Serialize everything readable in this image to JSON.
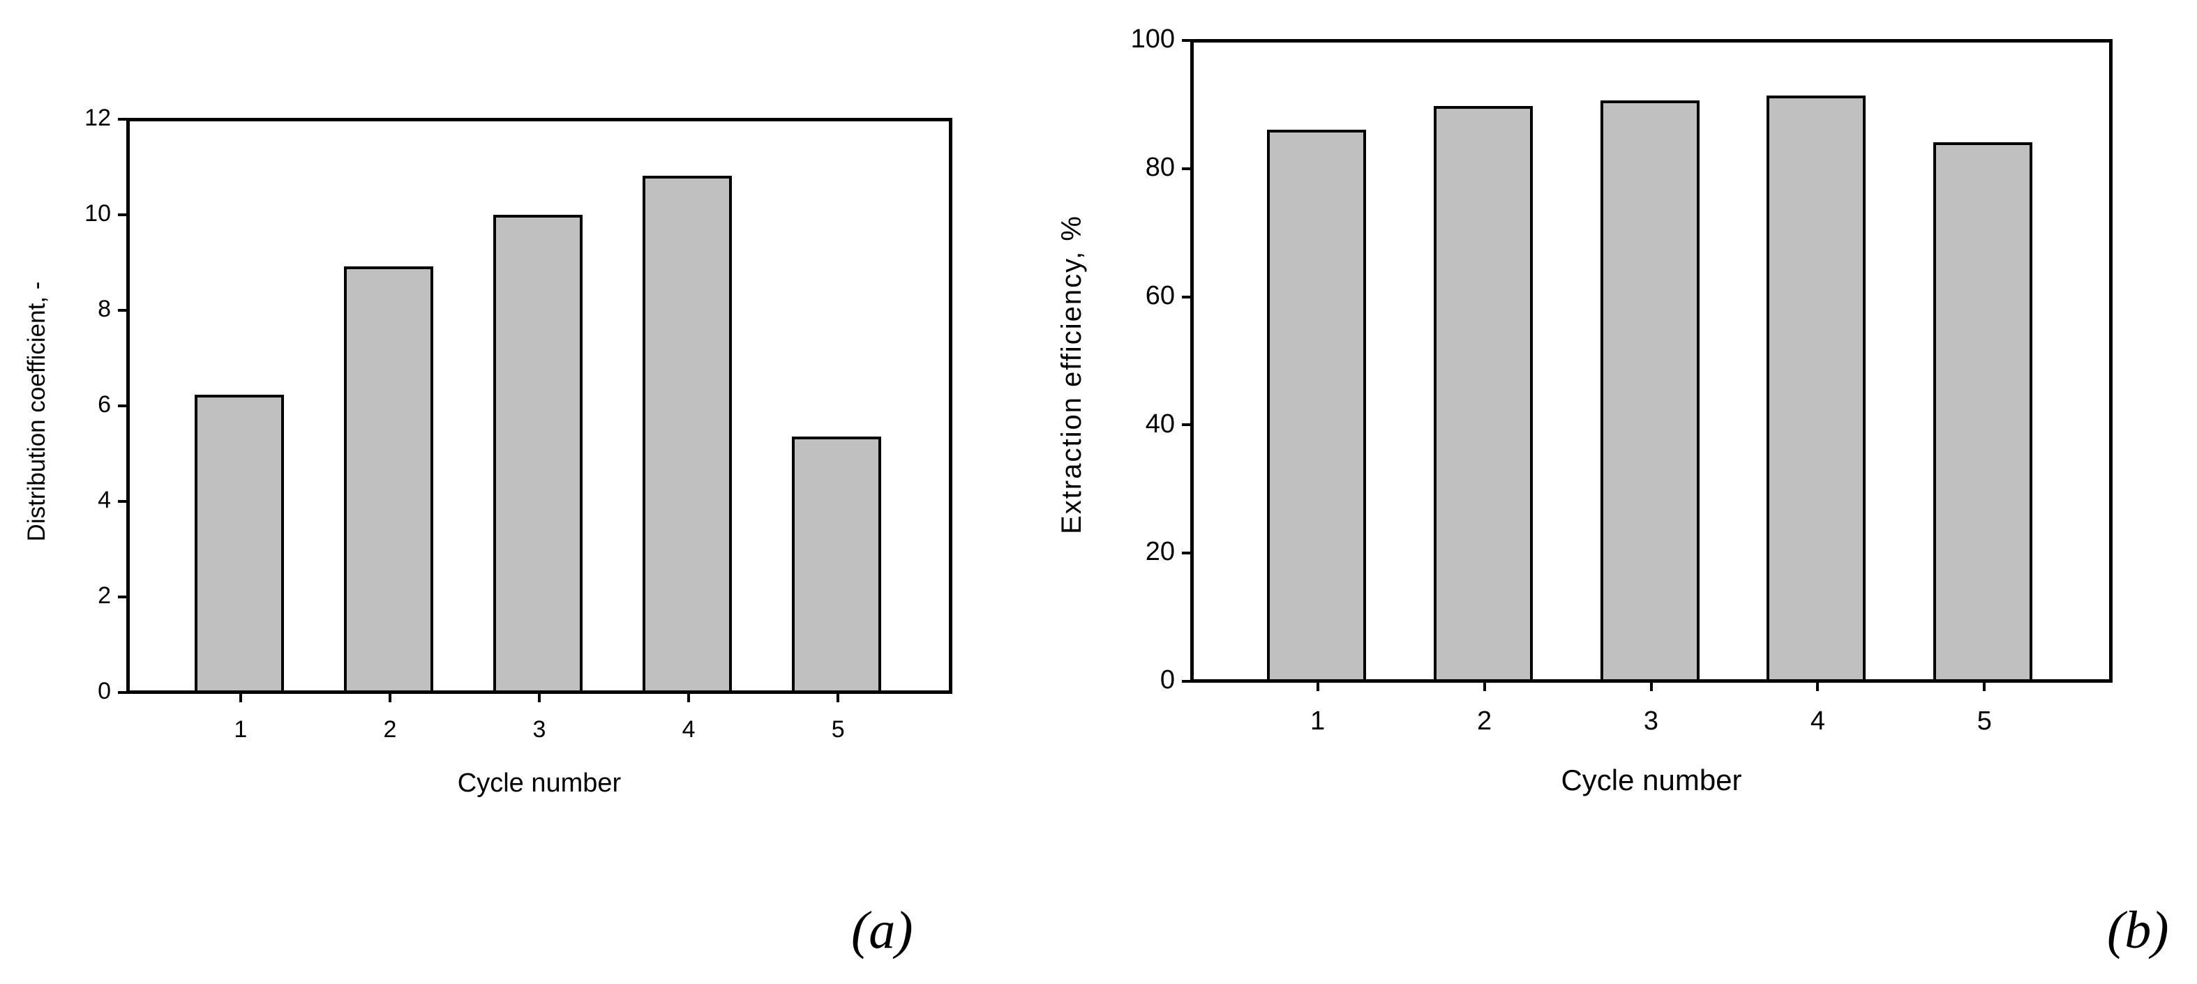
{
  "chart_data": [
    {
      "panel": "(a)",
      "type": "bar",
      "title": "",
      "categories": [
        "1",
        "2",
        "3",
        "4",
        "5"
      ],
      "values": [
        6.27,
        8.95,
        10.03,
        10.84,
        5.39
      ],
      "xlabel": "Cycle number",
      "ylabel": "Distribution coefficient, -",
      "ylim": [
        0,
        12
      ],
      "yticks": [
        "0",
        "2",
        "4",
        "6",
        "8",
        "10",
        "12"
      ],
      "grid": false,
      "legend": null,
      "bar_color": "#c0c0c0",
      "edge_color": "#000000"
    },
    {
      "panel": "(b)",
      "type": "bar",
      "title": "",
      "categories": [
        "1",
        "2",
        "3",
        "4",
        "5"
      ],
      "values": [
        86.3,
        90.0,
        90.9,
        91.6,
        84.3
      ],
      "xlabel": "Cycle number",
      "ylabel": "Extraction efficiency, %",
      "ylim": [
        0,
        100
      ],
      "yticks": [
        "0",
        "20",
        "40",
        "60",
        "80",
        "100"
      ],
      "grid": false,
      "legend": null,
      "bar_color": "#c0c0c0",
      "edge_color": "#000000"
    }
  ],
  "panels": {
    "a": {
      "tag": "(a)",
      "xlabel": "Cycle number",
      "ylabel": "Distribution coefficient, -",
      "xticks": [
        "1",
        "2",
        "3",
        "4",
        "5"
      ],
      "yticks": [
        "0",
        "2",
        "4",
        "6",
        "8",
        "10",
        "12"
      ]
    },
    "b": {
      "tag": "(b)",
      "xlabel": "Cycle number",
      "ylabel": "Extraction efficiency, %",
      "xticks": [
        "1",
        "2",
        "3",
        "4",
        "5"
      ],
      "yticks": [
        "0",
        "20",
        "40",
        "60",
        "80",
        "100"
      ]
    }
  }
}
